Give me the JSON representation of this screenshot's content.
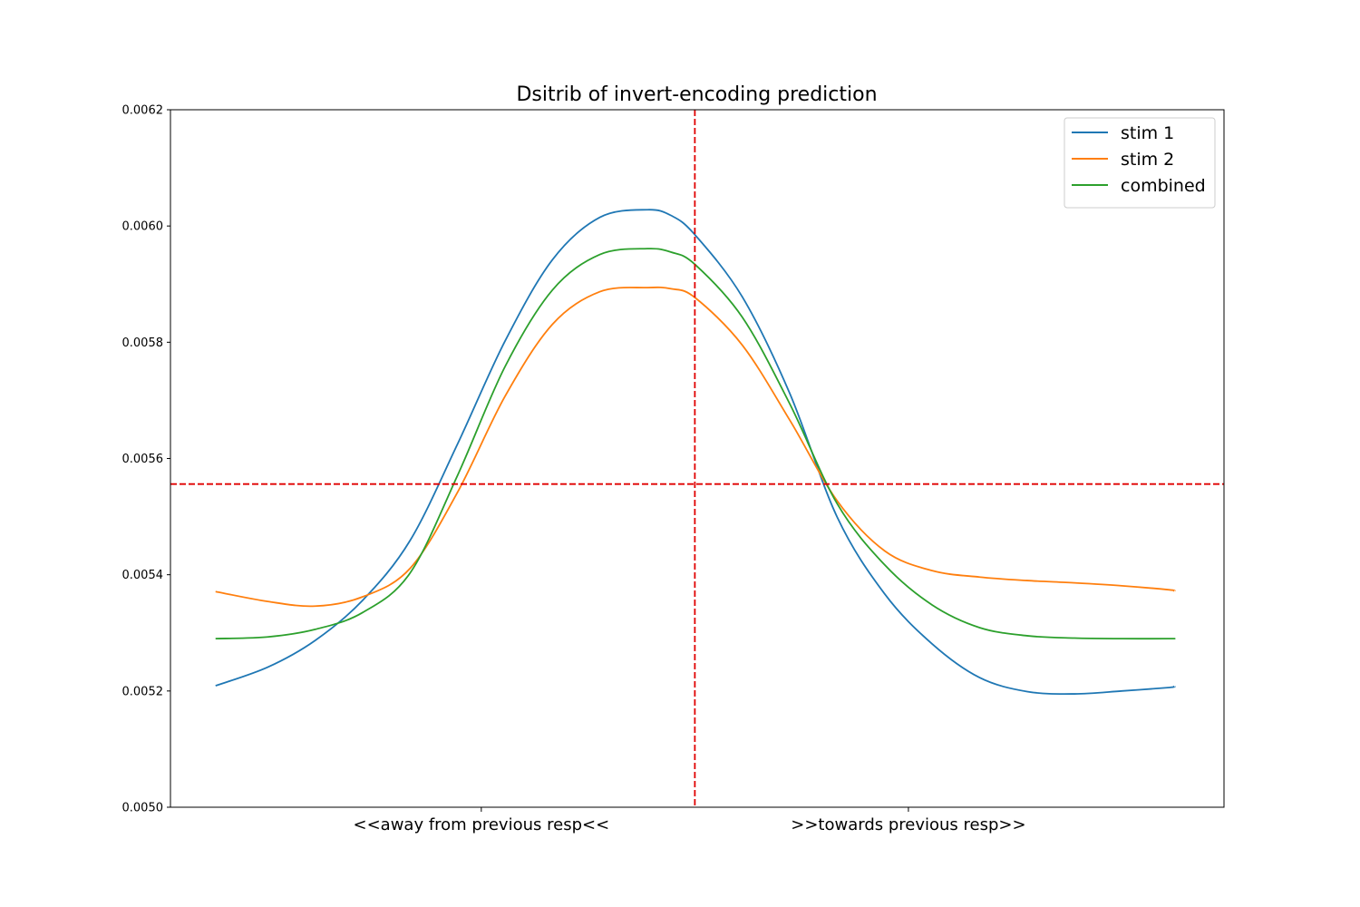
{
  "chart_data": {
    "type": "line",
    "title": "Dsitrib of invert-encoding prediction",
    "xlabel": "",
    "ylabel": "",
    "x_categories": [
      "<<away from previous resp<<",
      ">>towards previous resp>>"
    ],
    "x_category_positions": [
      -45,
      45
    ],
    "xlim": [
      -110.5,
      111.5
    ],
    "ylim": [
      0.005,
      0.0062
    ],
    "yticks": [
      0.005,
      0.0052,
      0.0054,
      0.0056,
      0.0058,
      0.006,
      0.0062
    ],
    "ytick_labels": [
      "0.0050",
      "0.0052",
      "0.0054",
      "0.0056",
      "0.0058",
      "0.0060",
      "0.0062"
    ],
    "grid": false,
    "legend": "top-right",
    "reference_lines": {
      "vertical_x": 0,
      "horizontal_y": 0.005556,
      "color": "#e00000",
      "style": "dashed"
    },
    "x": [
      -101,
      -90,
      -80,
      -70,
      -60,
      -50,
      -40,
      -30,
      -20,
      -10,
      -5,
      0,
      10,
      20,
      30,
      40,
      50,
      60,
      70,
      80,
      90,
      100,
      101
    ],
    "series": [
      {
        "name": "stim 1",
        "color": "#1f77b4",
        "values": [
          0.005209,
          0.005241,
          0.005287,
          0.005356,
          0.005459,
          0.005625,
          0.005802,
          0.005942,
          0.006015,
          0.006028,
          0.006018,
          0.005985,
          0.005878,
          0.005712,
          0.005499,
          0.005367,
          0.005281,
          0.005223,
          0.005199,
          0.005195,
          0.0052,
          0.005206,
          0.005208
        ]
      },
      {
        "name": "stim 2",
        "color": "#ff7f0e",
        "values": [
          0.005371,
          0.005354,
          0.005346,
          0.005362,
          0.005411,
          0.005542,
          0.005707,
          0.005831,
          0.005887,
          0.005894,
          0.005892,
          0.005877,
          0.005795,
          0.005666,
          0.005527,
          0.005441,
          0.005407,
          0.005396,
          0.00539,
          0.005386,
          0.005381,
          0.005374,
          0.005372
        ]
      },
      {
        "name": "combined",
        "color": "#2ca02c",
        "values": [
          0.00529,
          0.005293,
          0.005306,
          0.005335,
          0.005403,
          0.005571,
          0.005758,
          0.00589,
          0.005951,
          0.005961,
          0.005955,
          0.005934,
          0.005843,
          0.005694,
          0.005522,
          0.005417,
          0.005348,
          0.005309,
          0.005295,
          0.005291,
          0.00529,
          0.00529,
          0.00529
        ]
      }
    ]
  }
}
